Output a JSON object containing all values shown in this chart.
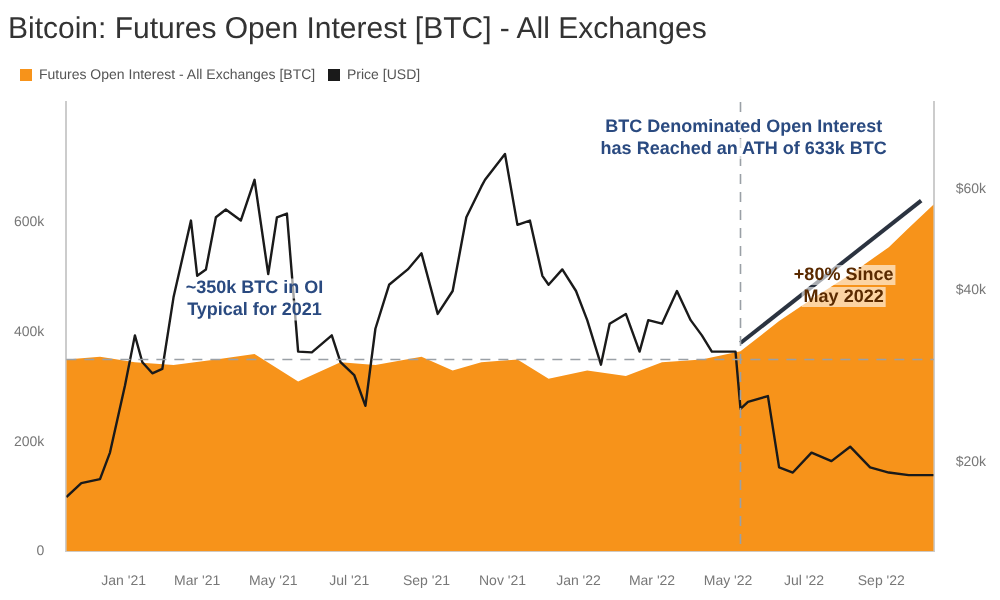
{
  "chart_data": {
    "type": "area",
    "title": "Bitcoin: Futures Open Interest [BTC] - All Exchanges",
    "series": [
      {
        "name": "Futures Open Interest - All Exchanges [BTC]",
        "color": "#f7931a",
        "x": [
          "2020-11-16",
          "2020-12-13",
          "2021-01-10",
          "2021-02-10",
          "2021-03-16",
          "2021-04-16",
          "2021-05-21",
          "2021-06-24",
          "2021-07-22",
          "2021-08-28",
          "2021-09-22",
          "2021-10-15",
          "2021-11-13",
          "2021-12-08",
          "2022-01-08",
          "2022-02-08",
          "2022-03-09",
          "2022-04-10",
          "2022-05-11",
          "2022-06-11",
          "2022-07-07",
          "2022-08-07",
          "2022-09-07",
          "2022-09-23",
          "2022-10-13"
        ],
        "values": [
          350000,
          355000,
          345000,
          340000,
          350000,
          360000,
          310000,
          345000,
          340000,
          355000,
          330000,
          345000,
          350000,
          315000,
          330000,
          320000,
          345000,
          350000,
          365000,
          420000,
          460000,
          505000,
          555000,
          590000,
          633000
        ]
      },
      {
        "name": "Price [USD]",
        "type": "line",
        "axis": "y2",
        "color": "#1a1a1a",
        "x": [
          "2020-11-16",
          "2020-11-28",
          "2020-12-13",
          "2020-12-21",
          "2021-01-02",
          "2021-01-10",
          "2021-01-16",
          "2021-01-24",
          "2021-02-01",
          "2021-02-10",
          "2021-02-24",
          "2021-03-01",
          "2021-03-08",
          "2021-03-16",
          "2021-03-24",
          "2021-04-05",
          "2021-04-16",
          "2021-04-27",
          "2021-05-04",
          "2021-05-12",
          "2021-05-21",
          "2021-06-01",
          "2021-06-17",
          "2021-06-24",
          "2021-07-05",
          "2021-07-14",
          "2021-07-22",
          "2021-08-02",
          "2021-08-17",
          "2021-08-28",
          "2021-09-10",
          "2021-09-22",
          "2021-10-03",
          "2021-10-15",
          "2021-10-18",
          "2021-11-03",
          "2021-11-13",
          "2021-11-23",
          "2021-12-03",
          "2021-12-08",
          "2021-12-19",
          "2021-12-30",
          "2022-01-08",
          "2022-01-19",
          "2022-01-26",
          "2022-02-08",
          "2022-02-19",
          "2022-02-26",
          "2022-03-09",
          "2022-03-21",
          "2022-04-01",
          "2022-04-10",
          "2022-04-18",
          "2022-05-07",
          "2022-05-11",
          "2022-05-17",
          "2022-06-02",
          "2022-06-11",
          "2022-06-22",
          "2022-07-07",
          "2022-07-23",
          "2022-08-07",
          "2022-08-23",
          "2022-09-07",
          "2022-09-23",
          "2022-10-13"
        ],
        "values": [
          17400,
          18400,
          18700,
          20800,
          27200,
          33300,
          29900,
          28600,
          29100,
          38800,
          52800,
          42300,
          43400,
          53500,
          55200,
          52800,
          62200,
          42600,
          53500,
          54300,
          31200,
          31100,
          33300,
          29900,
          28400,
          25100,
          34200,
          40800,
          43400,
          46300,
          36300,
          39800,
          53500,
          60500,
          62200,
          69000,
          51900,
          52800,
          42300,
          40800,
          43400,
          39800,
          35400,
          29600,
          34900,
          36300,
          31200,
          35400,
          34900,
          39800,
          35400,
          33300,
          31200,
          31200,
          24800,
          25500,
          26100,
          19600,
          19200,
          20800,
          20100,
          21300,
          19600,
          19200,
          19000,
          19000
        ]
      },
      {
        "type": "line",
        "color": "#2b3340",
        "x": [
          "2022-05-11",
          "2022-10-03"
        ],
        "values": [
          380000,
          640000
        ]
      }
    ],
    "xlim": [
      "2020-11-16",
      "2022-10-13"
    ],
    "xticks": [
      {
        "value": "2021-01-01",
        "label": "Jan '21"
      },
      {
        "value": "2021-03-01",
        "label": "Mar '21"
      },
      {
        "value": "2021-05-01",
        "label": "May '21"
      },
      {
        "value": "2021-07-01",
        "label": "Jul '21"
      },
      {
        "value": "2021-09-01",
        "label": "Sep '21"
      },
      {
        "value": "2021-11-01",
        "label": "Nov '21"
      },
      {
        "value": "2022-01-01",
        "label": "Jan '22"
      },
      {
        "value": "2022-03-01",
        "label": "Mar '22"
      },
      {
        "value": "2022-05-01",
        "label": "May '22"
      },
      {
        "value": "2022-07-01",
        "label": "Jul '22"
      },
      {
        "value": "2022-09-01",
        "label": "Sep '22"
      }
    ],
    "ylim": [
      0,
      820000
    ],
    "yticks": [
      {
        "value": 0,
        "label": "0"
      },
      {
        "value": 200000,
        "label": "200k"
      },
      {
        "value": 400000,
        "label": "400k"
      },
      {
        "value": 600000,
        "label": "600k"
      }
    ],
    "log": "y2",
    "y2lim": [
      14000,
      85000
    ],
    "y2ticks": [
      {
        "value": 20000,
        "label": "$20k"
      },
      {
        "value": 40000,
        "label": "$40k"
      },
      {
        "value": 60000,
        "label": "$60k"
      }
    ],
    "ref_lines": [
      {
        "axis": "y",
        "value": 350000,
        "color": "#9aa0a6",
        "line_style": "dashed"
      },
      {
        "axis": "x",
        "value": "2022-05-11",
        "color": "#9aa0a6",
        "line_style": "dashed"
      }
    ],
    "annotations": [
      {
        "text": "~350k BTC in OI Typical for 2021",
        "x": "2021-04-16",
        "y": 350000
      },
      "BTC Denominated Open Interest has Reached an ATH of 633k BTC",
      "+80% Since May 2022"
    ],
    "legend": "top left",
    "grid": false,
    "marker": "none"
  }
}
